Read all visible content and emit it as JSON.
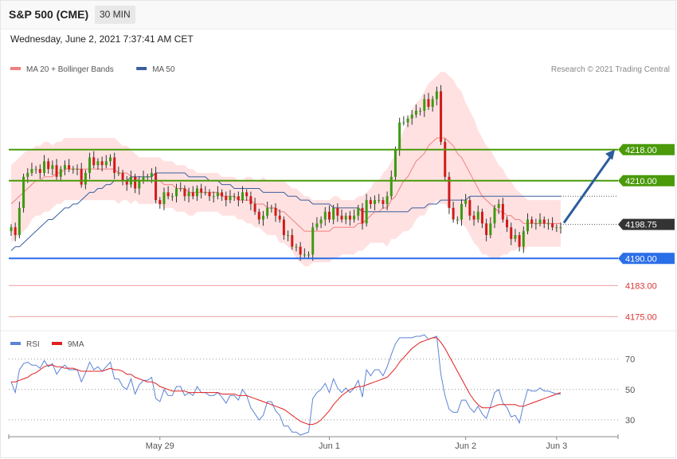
{
  "header": {
    "title": "S&P 500 (CME)",
    "timeframe": "30 MIN",
    "datetime": "Wednesday, June 2, 2021 7:37:41 AM CET"
  },
  "chart_data": [
    {
      "type": "candlestick",
      "legend": [
        {
          "label": "MA 20 + Bollinger Bands",
          "color": "#f08080"
        },
        {
          "label": "MA 50",
          "color": "#3a5f9f"
        }
      ],
      "credit": "Research © 2021 Trading Central",
      "x_tick_labels": [
        "May 29",
        "Jun 1",
        "Jun 2",
        "Jun 3"
      ],
      "x_tick_bars": [
        36,
        77,
        110,
        132
      ],
      "ylim": [
        4172,
        4236
      ],
      "levels": [
        {
          "value": 4218.0,
          "label": "4218.00",
          "kind": "resistance",
          "color": "#4a9a0a"
        },
        {
          "value": 4210.0,
          "label": "4210.00",
          "kind": "resistance",
          "color": "#4a9a0a"
        },
        {
          "value": 4198.75,
          "label": "4198.75",
          "kind": "last_price",
          "color": "#333333"
        },
        {
          "value": 4190.0,
          "label": "4190.00",
          "kind": "support",
          "color": "#2a6ee8"
        },
        {
          "value": 4183.0,
          "label": "4183.00",
          "kind": "support",
          "color": "#dd3333"
        },
        {
          "value": 4175.0,
          "label": "4175.00",
          "kind": "support",
          "color": "#dd3333"
        }
      ],
      "forecast_arrow": {
        "from": 4198.75,
        "to": 4218.0
      },
      "close": [
        4198,
        4196,
        4203,
        4211,
        4212,
        4213,
        4213,
        4212,
        4215,
        4213,
        4214,
        4211,
        4213,
        4214,
        4213,
        4213,
        4213,
        4209,
        4212,
        4216,
        4214,
        4215,
        4214,
        4215,
        4216,
        4212,
        4212,
        4210,
        4209,
        4211,
        4208,
        4210,
        4211,
        4211,
        4212,
        4205,
        4204,
        4207,
        4206,
        4206,
        4208,
        4208,
        4206,
        4207,
        4206,
        4208,
        4207,
        4207,
        4206,
        4206,
        4207,
        4206,
        4205,
        4206,
        4206,
        4205,
        4207,
        4206,
        4204,
        4202,
        4200,
        4201,
        4203,
        4203,
        4201,
        4200,
        4196,
        4196,
        4193,
        4193,
        4191,
        4191,
        4191,
        4198,
        4199,
        4200,
        4202,
        4200,
        4203,
        4201,
        4200,
        4201,
        4200,
        4201,
        4203,
        4199,
        4205,
        4204,
        4205,
        4205,
        4204,
        4206,
        4211,
        4218,
        4225,
        4225,
        4226,
        4227,
        4228,
        4228,
        4231,
        4229,
        4231,
        4233,
        4220,
        4211,
        4203,
        4200,
        4200,
        4204,
        4205,
        4201,
        4200,
        4202,
        4199,
        4196,
        4199,
        4203,
        4204,
        4200,
        4198,
        4195,
        4196,
        4193,
        4197,
        4200,
        4199,
        4199,
        4200,
        4199,
        4199,
        4198,
        4198,
        4198
      ],
      "ma20": [
        4204,
        4205,
        4206,
        4207,
        4208,
        4209,
        4210,
        4210,
        4211,
        4211,
        4211,
        4212,
        4212,
        4213,
        4213,
        4213,
        4213,
        4213,
        4213,
        4213,
        4213,
        4213,
        4213,
        4213,
        4213,
        4213,
        4212,
        4212,
        4212,
        4211,
        4211,
        4210,
        4210,
        4210,
        4210,
        4210,
        4210,
        4209,
        4209,
        4209,
        4208,
        4208,
        4208,
        4207,
        4207,
        4207,
        4207,
        4207,
        4207,
        4207,
        4207,
        4206,
        4206,
        4206,
        4206,
        4205,
        4205,
        4205,
        4205,
        4204,
        4204,
        4204,
        4203,
        4203,
        4203,
        4202,
        4202,
        4201,
        4200,
        4199,
        4198,
        4197,
        4197,
        4197,
        4197,
        4197,
        4197,
        4197,
        4198,
        4198,
        4198,
        4198,
        4198,
        4198,
        4199,
        4199,
        4200,
        4201,
        4202,
        4202,
        4203,
        4203,
        4205,
        4206,
        4208,
        4210,
        4211,
        4213,
        4215,
        4216,
        4217,
        4219,
        4220,
        4221,
        4221,
        4221,
        4220,
        4219,
        4217,
        4216,
        4214,
        4212,
        4210,
        4208,
        4206,
        4205,
        4204,
        4203,
        4202,
        4202,
        4201,
        4201,
        4200,
        4200,
        4199,
        4199,
        4199,
        4199,
        4199,
        4199,
        4199,
        4199,
        4199,
        4199
      ],
      "bb_width": [
        10,
        10,
        10,
        10,
        10,
        9,
        9,
        9,
        9,
        9,
        8,
        8,
        8,
        8,
        8,
        8,
        8,
        8,
        8,
        8,
        8,
        8,
        8,
        8,
        8,
        8,
        8,
        7,
        7,
        7,
        6,
        6,
        6,
        6,
        6,
        6,
        6,
        6,
        6,
        6,
        6,
        6,
        6,
        6,
        6,
        5,
        5,
        5,
        5,
        5,
        5,
        5,
        5,
        5,
        5,
        5,
        5,
        6,
        6,
        6,
        6,
        7,
        7,
        7,
        7,
        8,
        8,
        8,
        8,
        9,
        9,
        9,
        9,
        8,
        8,
        8,
        8,
        8,
        8,
        8,
        7,
        7,
        7,
        7,
        7,
        7,
        7,
        7,
        8,
        8,
        9,
        10,
        10,
        11,
        12,
        13,
        14,
        15,
        15,
        15,
        16,
        16,
        16,
        16,
        17,
        17,
        17,
        17,
        17,
        17,
        16,
        16,
        16,
        15,
        15,
        14,
        14,
        13,
        12,
        11,
        10,
        9,
        8,
        7,
        7,
        6,
        6,
        6,
        6,
        6,
        6,
        6,
        6,
        6
      ],
      "ma50": [
        4192,
        4193,
        4193,
        4194,
        4195,
        4196,
        4197,
        4198,
        4199,
        4200,
        4200,
        4201,
        4202,
        4203,
        4203,
        4204,
        4204,
        4205,
        4206,
        4207,
        4207,
        4208,
        4208,
        4209,
        4209,
        4210,
        4210,
        4210,
        4210,
        4211,
        4211,
        4211,
        4211,
        4211,
        4211,
        4212,
        4212,
        4212,
        4212,
        4212,
        4212,
        4212,
        4212,
        4211,
        4211,
        4211,
        4211,
        4211,
        4210,
        4210,
        4210,
        4209,
        4209,
        4209,
        4208,
        4208,
        4208,
        4208,
        4208,
        4208,
        4208,
        4207,
        4207,
        4207,
        4207,
        4207,
        4207,
        4206,
        4206,
        4206,
        4205,
        4205,
        4205,
        4204,
        4204,
        4204,
        4204,
        4204,
        4203,
        4203,
        4203,
        4203,
        4203,
        4203,
        4203,
        4202,
        4202,
        4202,
        4202,
        4202,
        4202,
        4202,
        4202,
        4202,
        4202,
        4202,
        4202,
        4203,
        4203,
        4203,
        4203,
        4204,
        4204,
        4204,
        4205,
        4205,
        4205,
        4205,
        4205,
        4205,
        4205,
        4206,
        4206,
        4206,
        4206,
        4206,
        4206,
        4206,
        4206,
        4206,
        4206,
        4206,
        4206,
        4206,
        4206,
        4206,
        4206,
        4206,
        4206,
        4206,
        4206,
        4206,
        4206,
        4206
      ]
    },
    {
      "type": "line",
      "legend": [
        {
          "label": "RSI",
          "color": "#5b84d6"
        },
        {
          "label": "9MA",
          "color": "#e02020"
        }
      ],
      "ylim": [
        20,
        85
      ],
      "y_tick_labels": [
        "70",
        "50",
        "30"
      ],
      "y_ticks": [
        70,
        50,
        30
      ],
      "rsi": [
        55,
        48,
        63,
        67,
        68,
        66,
        66,
        64,
        69,
        65,
        67,
        60,
        64,
        66,
        63,
        63,
        63,
        55,
        61,
        68,
        63,
        65,
        62,
        65,
        68,
        57,
        57,
        52,
        50,
        57,
        47,
        53,
        56,
        56,
        58,
        44,
        42,
        50,
        46,
        46,
        52,
        52,
        46,
        48,
        46,
        52,
        48,
        48,
        46,
        46,
        48,
        45,
        41,
        46,
        46,
        43,
        50,
        46,
        38,
        34,
        30,
        33,
        42,
        42,
        36,
        33,
        26,
        26,
        22,
        22,
        20,
        21,
        22,
        44,
        48,
        50,
        54,
        48,
        57,
        51,
        48,
        51,
        48,
        51,
        56,
        45,
        63,
        59,
        63,
        63,
        59,
        65,
        73,
        80,
        84,
        84,
        84,
        84,
        85,
        85,
        86,
        83,
        84,
        85,
        60,
        46,
        37,
        35,
        35,
        43,
        43,
        38,
        35,
        39,
        34,
        31,
        39,
        48,
        50,
        41,
        38,
        32,
        33,
        28,
        40,
        50,
        49,
        49,
        51,
        49,
        49,
        48,
        47,
        47
      ],
      "ma9": [
        55,
        55,
        56,
        57,
        58,
        60,
        61,
        63,
        65,
        66,
        66,
        65,
        65,
        64,
        64,
        64,
        63,
        62,
        62,
        62,
        62,
        62,
        62,
        63,
        64,
        63,
        63,
        62,
        60,
        60,
        58,
        57,
        56,
        55,
        55,
        54,
        52,
        51,
        50,
        49,
        49,
        49,
        49,
        48,
        48,
        48,
        48,
        48,
        48,
        48,
        48,
        47,
        47,
        47,
        47,
        46,
        46,
        46,
        45,
        44,
        43,
        42,
        41,
        40,
        39,
        38,
        37,
        35,
        33,
        31,
        29,
        28,
        27,
        27,
        28,
        30,
        33,
        36,
        40,
        43,
        46,
        48,
        50,
        51,
        52,
        52,
        53,
        54,
        55,
        56,
        57,
        58,
        61,
        64,
        68,
        71,
        74,
        77,
        79,
        81,
        82,
        83,
        84,
        84,
        81,
        77,
        72,
        67,
        62,
        57,
        52,
        47,
        43,
        40,
        38,
        38,
        38,
        39,
        40,
        40,
        40,
        40,
        40,
        39,
        39,
        40,
        41,
        42,
        43,
        44,
        45,
        46,
        47,
        48
      ]
    }
  ]
}
